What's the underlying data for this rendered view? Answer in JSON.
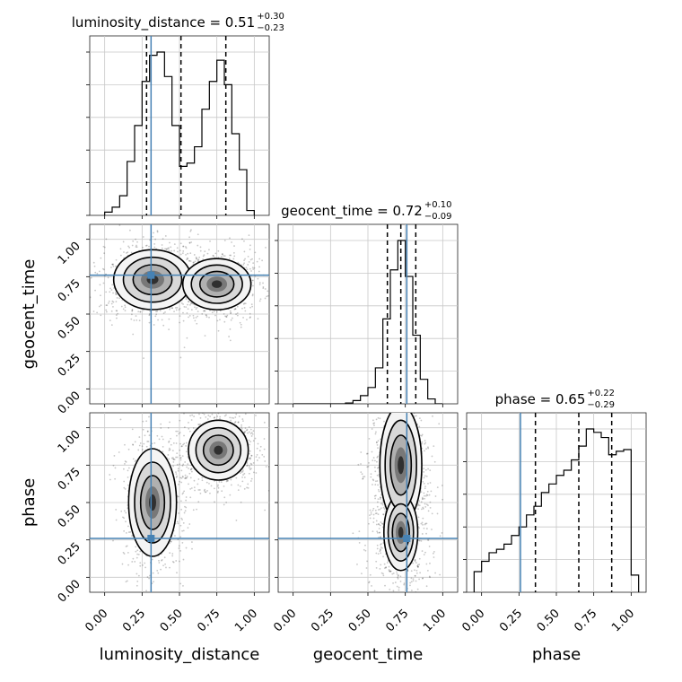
{
  "chart_data": {
    "type": "corner",
    "parameters": [
      "luminosity_distance",
      "geocent_time",
      "phase"
    ],
    "axis_range": [
      -0.1,
      1.1
    ],
    "tick_labels": [
      "0.00",
      "0.25",
      "0.50",
      "0.75",
      "1.00"
    ],
    "grid": true,
    "truth": {
      "luminosity_distance": 0.31,
      "geocent_time": 0.76,
      "phase": 0.26
    },
    "truth_color": "#4682b4",
    "titles": [
      {
        "param": "luminosity_distance",
        "text": "luminosity_distance = 0.51",
        "plus": "+0.30",
        "minus": "−0.23"
      },
      {
        "param": "geocent_time",
        "text": "geocent_time = 0.72",
        "plus": "+0.10",
        "minus": "−0.09"
      },
      {
        "param": "phase",
        "text": "phase = 0.65",
        "plus": "+0.22",
        "minus": "−0.29"
      }
    ],
    "histograms": {
      "luminosity_distance": {
        "bin_edges": [
          0.0,
          0.05,
          0.1,
          0.15,
          0.2,
          0.25,
          0.3,
          0.35,
          0.4,
          0.45,
          0.5,
          0.55,
          0.6,
          0.65,
          0.7,
          0.75,
          0.8,
          0.85,
          0.9,
          0.95,
          1.0
        ],
        "counts": [
          2,
          5,
          12,
          33,
          55,
          82,
          98,
          100,
          85,
          55,
          30,
          32,
          42,
          65,
          82,
          95,
          80,
          50,
          28,
          3
        ],
        "quantiles": [
          0.28,
          0.51,
          0.81
        ]
      },
      "geocent_time": {
        "bin_edges": [
          0.0,
          0.05,
          0.1,
          0.15,
          0.2,
          0.25,
          0.3,
          0.35,
          0.4,
          0.45,
          0.5,
          0.55,
          0.6,
          0.65,
          0.7,
          0.75,
          0.8,
          0.85,
          0.9,
          0.95,
          1.0
        ],
        "counts": [
          0,
          0,
          0,
          0,
          0,
          0,
          0,
          0.5,
          2,
          5,
          10,
          22,
          52,
          82,
          100,
          78,
          42,
          15,
          3,
          0
        ],
        "quantiles": [
          0.63,
          0.72,
          0.82
        ]
      },
      "phase": {
        "bin_edges": [
          -0.05,
          0.0,
          0.05,
          0.1,
          0.15,
          0.2,
          0.25,
          0.3,
          0.35,
          0.4,
          0.45,
          0.5,
          0.55,
          0.6,
          0.65,
          0.7,
          0.75,
          0.8,
          0.85,
          0.9,
          0.95,
          1.0,
          1.05
        ],
        "counts": [
          12,
          18,
          23,
          25,
          28,
          33,
          38,
          45,
          50,
          58,
          63,
          68,
          71,
          77,
          85,
          95,
          93,
          90,
          80,
          82,
          83,
          10
        ],
        "quantiles": [
          0.36,
          0.65,
          0.87
        ]
      }
    },
    "pairs": [
      {
        "x": "luminosity_distance",
        "y": "geocent_time",
        "modes": [
          {
            "x": 0.32,
            "y": 0.73,
            "sx": 0.13,
            "sy": 0.1,
            "w": 1.0
          },
          {
            "x": 0.75,
            "y": 0.7,
            "sx": 0.12,
            "sy": 0.09,
            "w": 0.9
          }
        ]
      },
      {
        "x": "luminosity_distance",
        "y": "phase",
        "modes": [
          {
            "x": 0.32,
            "y": 0.5,
            "sx": 0.08,
            "sy": 0.18,
            "w": 1.0
          },
          {
            "x": 0.76,
            "y": 0.85,
            "sx": 0.1,
            "sy": 0.1,
            "w": 1.0
          }
        ]
      },
      {
        "x": "geocent_time",
        "y": "phase",
        "modes": [
          {
            "x": 0.72,
            "y": 0.75,
            "sx": 0.07,
            "sy": 0.2,
            "w": 1.0
          },
          {
            "x": 0.72,
            "y": 0.3,
            "sx": 0.08,
            "sy": 0.18,
            "w": 0.5
          }
        ]
      }
    ]
  }
}
